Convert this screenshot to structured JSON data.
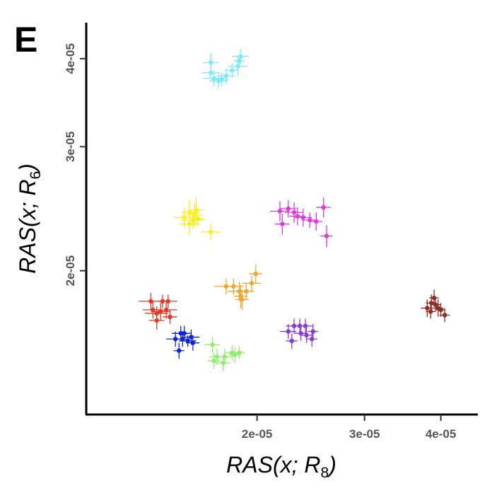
{
  "panel_label": "E",
  "chart_data": {
    "type": "scatter",
    "title": "",
    "xlabel": {
      "prefix": "RAS(x; R",
      "subscript": "8",
      "suffix": ")"
    },
    "ylabel": {
      "prefix": "RAS(x; R",
      "subscript": "6",
      "suffix": ")"
    },
    "x_scale": "log",
    "y_scale": "log",
    "xlim": [
      1.05e-05,
      4.6e-05
    ],
    "ylim": [
      1.25e-05,
      4.5e-05
    ],
    "x_ticks": [
      {
        "value": 2e-05,
        "label": "2e-05"
      },
      {
        "value": 3e-05,
        "label": "3e-05"
      },
      {
        "value": 4e-05,
        "label": "4e-05"
      }
    ],
    "y_ticks": [
      {
        "value": 2e-05,
        "label": "2e-05"
      },
      {
        "value": 3e-05,
        "label": "3e-05"
      },
      {
        "value": 4e-05,
        "label": "4e-05"
      }
    ],
    "grid": false,
    "legend": "none",
    "series": [
      {
        "color": "#7ee9f4",
        "points": [
          {
            "x": 1.68e-05,
            "y": 3.95e-05,
            "xerr": 5e-07,
            "yerr": 1.2e-06
          },
          {
            "x": 1.68e-05,
            "y": 3.82e-05,
            "xerr": 6e-07,
            "yerr": 8e-07
          },
          {
            "x": 1.7e-05,
            "y": 3.75e-05,
            "xerr": 7e-07,
            "yerr": 1e-06
          },
          {
            "x": 1.73e-05,
            "y": 3.72e-05,
            "xerr": 6e-07,
            "yerr": 9e-07
          },
          {
            "x": 1.75e-05,
            "y": 3.74e-05,
            "xerr": 5e-07,
            "yerr": 8e-07
          },
          {
            "x": 1.78e-05,
            "y": 3.78e-05,
            "xerr": 6e-07,
            "yerr": 1e-06
          },
          {
            "x": 1.82e-05,
            "y": 3.85e-05,
            "xerr": 5e-07,
            "yerr": 9e-07
          },
          {
            "x": 1.86e-05,
            "y": 3.9e-05,
            "xerr": 7e-07,
            "yerr": 1.2e-06
          },
          {
            "x": 1.88e-05,
            "y": 4.03e-05,
            "xerr": 6e-07,
            "yerr": 1e-06
          },
          {
            "x": 1.87e-05,
            "y": 3.97e-05,
            "xerr": 4e-07,
            "yerr": 8e-07
          }
        ]
      },
      {
        "color": "#f7f021",
        "points": [
          {
            "x": 1.52e-05,
            "y": 2.38e-05,
            "xerr": 6e-07,
            "yerr": 8e-07
          },
          {
            "x": 1.55e-05,
            "y": 2.42e-05,
            "xerr": 5e-07,
            "yerr": 1e-06
          },
          {
            "x": 1.57e-05,
            "y": 2.36e-05,
            "xerr": 7e-07,
            "yerr": 7e-07
          },
          {
            "x": 1.58e-05,
            "y": 2.4e-05,
            "xerr": 5e-07,
            "yerr": 9e-07
          },
          {
            "x": 1.55e-05,
            "y": 2.33e-05,
            "xerr": 6e-07,
            "yerr": 8e-07
          },
          {
            "x": 1.6e-05,
            "y": 2.37e-05,
            "xerr": 4e-07,
            "yerr": 6e-07
          },
          {
            "x": 1.59e-05,
            "y": 2.44e-05,
            "xerr": 5e-07,
            "yerr": 1e-06
          },
          {
            "x": 1.68e-05,
            "y": 2.27e-05,
            "xerr": 6e-07,
            "yerr": 6e-07
          }
        ]
      },
      {
        "color": "#de3bde",
        "points": [
          {
            "x": 2.18e-05,
            "y": 2.43e-05,
            "xerr": 8e-07,
            "yerr": 8e-07
          },
          {
            "x": 2.25e-05,
            "y": 2.45e-05,
            "xerr": 7e-07,
            "yerr": 7e-07
          },
          {
            "x": 2.3e-05,
            "y": 2.42e-05,
            "xerr": 8e-07,
            "yerr": 8e-07
          },
          {
            "x": 2.33e-05,
            "y": 2.39e-05,
            "xerr": 7e-07,
            "yerr": 7e-07
          },
          {
            "x": 2.38e-05,
            "y": 2.38e-05,
            "xerr": 8e-07,
            "yerr": 7e-07
          },
          {
            "x": 2.44e-05,
            "y": 2.36e-05,
            "xerr": 7e-07,
            "yerr": 6e-07
          },
          {
            "x": 2.5e-05,
            "y": 2.35e-05,
            "xerr": 6e-07,
            "yerr": 7e-07
          },
          {
            "x": 2.57e-05,
            "y": 2.46e-05,
            "xerr": 7e-07,
            "yerr": 8e-07
          },
          {
            "x": 2.2e-05,
            "y": 2.33e-05,
            "xerr": 6e-07,
            "yerr": 8e-07
          },
          {
            "x": 2.6e-05,
            "y": 2.24e-05,
            "xerr": 6e-07,
            "yerr": 8e-07
          }
        ]
      },
      {
        "color": "#f0a532",
        "points": [
          {
            "x": 1.78e-05,
            "y": 1.9e-05,
            "xerr": 8e-07,
            "yerr": 5e-07
          },
          {
            "x": 1.83e-05,
            "y": 1.9e-05,
            "xerr": 7e-07,
            "yerr": 5e-07
          },
          {
            "x": 1.87e-05,
            "y": 1.87e-05,
            "xerr": 8e-07,
            "yerr": 6e-07
          },
          {
            "x": 1.88e-05,
            "y": 1.84e-05,
            "xerr": 5e-07,
            "yerr": 7e-07
          },
          {
            "x": 1.89e-05,
            "y": 1.82e-05,
            "xerr": 5e-07,
            "yerr": 6e-07
          },
          {
            "x": 1.92e-05,
            "y": 1.87e-05,
            "xerr": 6e-07,
            "yerr": 5e-07
          },
          {
            "x": 1.96e-05,
            "y": 1.92e-05,
            "xerr": 7e-07,
            "yerr": 5e-07
          },
          {
            "x": 1.99e-05,
            "y": 1.98e-05,
            "xerr": 5e-07,
            "yerr": 6e-07
          }
        ]
      },
      {
        "color": "#e63627",
        "points": [
          {
            "x": 1.34e-05,
            "y": 1.81e-05,
            "xerr": 6e-07,
            "yerr": 5e-07
          },
          {
            "x": 1.35e-05,
            "y": 1.76e-05,
            "xerr": 5e-07,
            "yerr": 5e-07
          },
          {
            "x": 1.37e-05,
            "y": 1.74e-05,
            "xerr": 6e-07,
            "yerr": 4e-07
          },
          {
            "x": 1.39e-05,
            "y": 1.75e-05,
            "xerr": 5e-07,
            "yerr": 5e-07
          },
          {
            "x": 1.4e-05,
            "y": 1.81e-05,
            "xerr": 4e-07,
            "yerr": 4e-07
          },
          {
            "x": 1.42e-05,
            "y": 1.76e-05,
            "xerr": 6e-07,
            "yerr": 5e-07
          },
          {
            "x": 1.37e-05,
            "y": 1.7e-05,
            "xerr": 4e-07,
            "yerr": 5e-07
          },
          {
            "x": 1.43e-05,
            "y": 1.81e-05,
            "xerr": 5e-07,
            "yerr": 4e-07
          },
          {
            "x": 1.44e-05,
            "y": 1.72e-05,
            "xerr": 4e-07,
            "yerr": 4e-07
          }
        ]
      },
      {
        "color": "#0c25db",
        "points": [
          {
            "x": 1.47e-05,
            "y": 1.6e-05,
            "xerr": 5e-07,
            "yerr": 4e-07
          },
          {
            "x": 1.5e-05,
            "y": 1.63e-05,
            "xerr": 5e-07,
            "yerr": 4e-07
          },
          {
            "x": 1.51e-05,
            "y": 1.6e-05,
            "xerr": 4e-07,
            "yerr": 4e-07
          },
          {
            "x": 1.54e-05,
            "y": 1.59e-05,
            "xerr": 5e-07,
            "yerr": 3e-07
          },
          {
            "x": 1.56e-05,
            "y": 1.61e-05,
            "xerr": 5e-07,
            "yerr": 4e-07
          },
          {
            "x": 1.57e-05,
            "y": 1.58e-05,
            "xerr": 4e-07,
            "yerr": 4e-07
          },
          {
            "x": 1.49e-05,
            "y": 1.54e-05,
            "xerr": 3e-07,
            "yerr": 4e-07
          },
          {
            "x": 1.52e-05,
            "y": 1.63e-05,
            "xerr": 4e-07,
            "yerr": 4e-07
          }
        ]
      },
      {
        "color": "#8fef6a",
        "points": [
          {
            "x": 1.69e-05,
            "y": 1.57e-05,
            "xerr": 5e-07,
            "yerr": 4e-07
          },
          {
            "x": 1.72e-05,
            "y": 1.51e-05,
            "xerr": 5e-07,
            "yerr": 4e-07
          },
          {
            "x": 1.77e-05,
            "y": 1.51e-05,
            "xerr": 5e-07,
            "yerr": 4e-07
          },
          {
            "x": 1.82e-05,
            "y": 1.53e-05,
            "xerr": 5e-07,
            "yerr": 4e-07
          },
          {
            "x": 1.84e-05,
            "y": 1.52e-05,
            "xerr": 4e-07,
            "yerr": 4e-07
          },
          {
            "x": 1.87e-05,
            "y": 1.53e-05,
            "xerr": 4e-07,
            "yerr": 3e-07
          },
          {
            "x": 1.7e-05,
            "y": 1.49e-05,
            "xerr": 4e-07,
            "yerr": 4e-07
          },
          {
            "x": 1.76e-05,
            "y": 1.48e-05,
            "xerr": 5e-07,
            "yerr": 4e-07
          }
        ]
      },
      {
        "color": "#8a3bd0",
        "points": [
          {
            "x": 2.3e-05,
            "y": 1.67e-05,
            "xerr": 7e-07,
            "yerr": 4e-07
          },
          {
            "x": 2.35e-05,
            "y": 1.67e-05,
            "xerr": 6e-07,
            "yerr": 4e-07
          },
          {
            "x": 2.4e-05,
            "y": 1.67e-05,
            "xerr": 7e-07,
            "yerr": 4e-07
          },
          {
            "x": 2.25e-05,
            "y": 1.64e-05,
            "xerr": 7e-07,
            "yerr": 4e-07
          },
          {
            "x": 2.36e-05,
            "y": 1.63e-05,
            "xerr": 6e-07,
            "yerr": 4e-07
          },
          {
            "x": 2.41e-05,
            "y": 1.62e-05,
            "xerr": 6e-07,
            "yerr": 4e-07
          },
          {
            "x": 2.47e-05,
            "y": 1.64e-05,
            "xerr": 5e-07,
            "yerr": 4e-07
          },
          {
            "x": 2.28e-05,
            "y": 1.59e-05,
            "xerr": 5e-07,
            "yerr": 4e-07
          },
          {
            "x": 2.46e-05,
            "y": 1.6e-05,
            "xerr": 5e-07,
            "yerr": 4e-07
          }
        ]
      },
      {
        "color": "#8e2c25",
        "points": [
          {
            "x": 3.8e-05,
            "y": 1.77e-05,
            "xerr": 9e-07,
            "yerr": 5e-07
          },
          {
            "x": 3.86e-05,
            "y": 1.8e-05,
            "xerr": 8e-07,
            "yerr": 5e-07
          },
          {
            "x": 3.9e-05,
            "y": 1.83e-05,
            "xerr": 7e-07,
            "yerr": 5e-07
          },
          {
            "x": 3.92e-05,
            "y": 1.79e-05,
            "xerr": 8e-07,
            "yerr": 4e-07
          },
          {
            "x": 3.96e-05,
            "y": 1.77e-05,
            "xerr": 8e-07,
            "yerr": 5e-07
          },
          {
            "x": 4e-05,
            "y": 1.76e-05,
            "xerr": 7e-07,
            "yerr": 4e-07
          },
          {
            "x": 3.85e-05,
            "y": 1.75e-05,
            "xerr": 7e-07,
            "yerr": 4e-07
          },
          {
            "x": 4.06e-05,
            "y": 1.73e-05,
            "xerr": 8e-07,
            "yerr": 4e-07
          }
        ]
      }
    ]
  }
}
